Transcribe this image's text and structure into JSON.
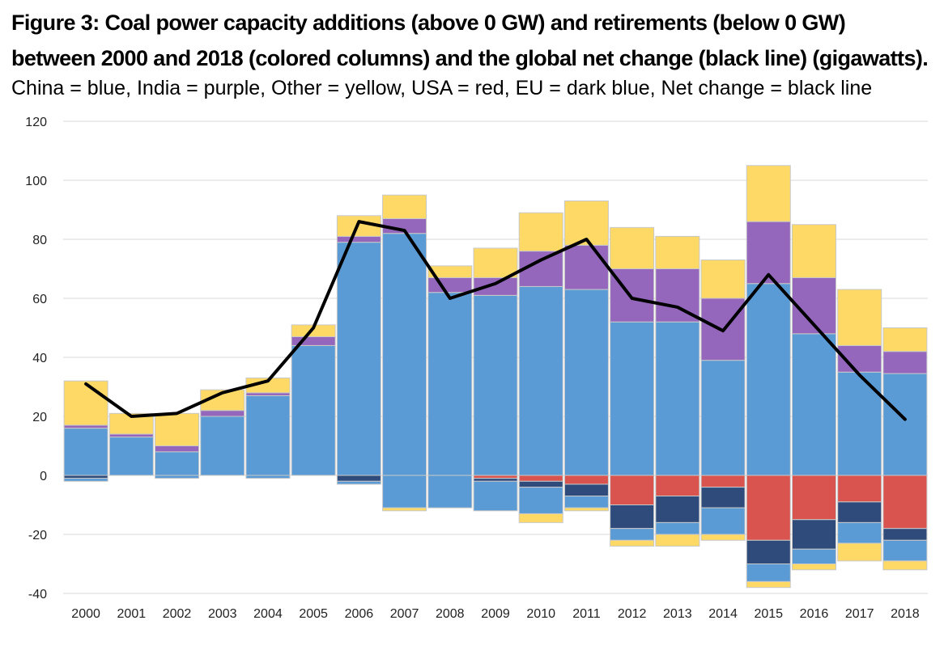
{
  "title": "Figure 3: Coal power capacity additions (above 0 GW) and retirements (below 0 GW) between 2000 and 2018 (colored columns) and the global net change (black line) (gigawatts).",
  "subtitle": "China = blue, India = purple, Other = yellow, USA = red, EU = dark blue, Net change = black line",
  "colors": {
    "China": "#5b9bd5",
    "India": "#9467bd",
    "Other": "#ffd966",
    "USA": "#d9534f",
    "EU": "#2f4b7c",
    "Net": "#000000",
    "grid": "#d9d9d9",
    "outline": "#c8c8c8"
  },
  "chart_data": {
    "type": "bar",
    "stacked": true,
    "ylim": [
      -40,
      120
    ],
    "yticks": [
      -40,
      -20,
      0,
      20,
      40,
      60,
      80,
      100,
      120
    ],
    "grid": true,
    "categories": [
      "2000",
      "2001",
      "2002",
      "2003",
      "2004",
      "2005",
      "2006",
      "2007",
      "2008",
      "2009",
      "2010",
      "2011",
      "2012",
      "2013",
      "2014",
      "2015",
      "2016",
      "2017",
      "2018"
    ],
    "additions": [
      {
        "name": "China",
        "values": [
          16,
          13,
          8,
          20,
          27,
          44,
          79,
          82,
          62,
          61,
          64,
          63,
          52,
          52,
          39,
          65,
          48,
          35,
          34.5
        ]
      },
      {
        "name": "India",
        "values": [
          1,
          1,
          2,
          2,
          1,
          3,
          2,
          5,
          5,
          6,
          12,
          15,
          18,
          18,
          21,
          21,
          19,
          9,
          7.5
        ]
      },
      {
        "name": "Other",
        "values": [
          15,
          7,
          11,
          7,
          5,
          4,
          7,
          8,
          4,
          10,
          13,
          15,
          14,
          11,
          13,
          19,
          18,
          19,
          8
        ]
      }
    ],
    "retirements": [
      {
        "name": "USA",
        "values": [
          0,
          0,
          0,
          0,
          0,
          0,
          0,
          0,
          0,
          -1,
          -2,
          -3,
          -10,
          -7,
          -4,
          -22,
          -15,
          -9,
          -18
        ]
      },
      {
        "name": "EU",
        "values": [
          -1,
          0,
          0,
          0,
          0,
          0,
          -2,
          0,
          0,
          -1,
          -2,
          -4,
          -8,
          -9,
          -7,
          -8,
          -10,
          -7,
          -4
        ]
      },
      {
        "name": "China",
        "values": [
          -1,
          0,
          -1,
          0,
          -1,
          0,
          -1,
          -11,
          -11,
          -10,
          -9,
          -4,
          -4,
          -4,
          -9,
          -6,
          -5,
          -7,
          -7
        ]
      },
      {
        "name": "Other",
        "values": [
          0,
          0,
          0,
          0,
          0,
          0,
          0,
          -1,
          0,
          0,
          -3,
          -1,
          -2,
          -4,
          -2,
          -2,
          -2,
          -6,
          -3
        ]
      }
    ],
    "net_change": {
      "name": "Net change",
      "values": [
        31,
        20,
        21,
        28,
        32,
        50,
        86,
        83,
        60,
        65,
        73,
        80,
        60,
        57,
        49,
        68,
        51,
        34,
        19
      ]
    }
  }
}
